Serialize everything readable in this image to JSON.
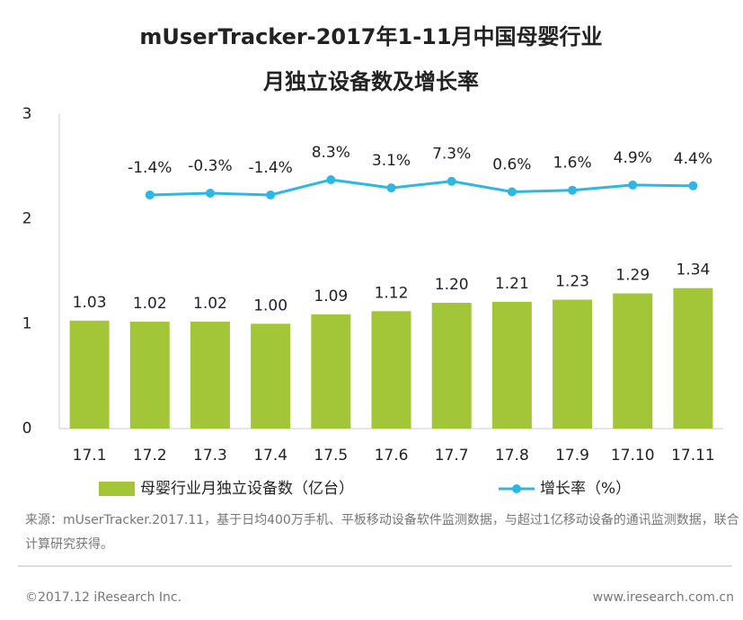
{
  "chart_data": {
    "type": "bar_line",
    "title": [
      "mUserTracker-2017年1-11月中国母婴行业",
      "月独立设备数及增长率"
    ],
    "categories": [
      "17.1",
      "17.2",
      "17.3",
      "17.4",
      "17.5",
      "17.6",
      "17.7",
      "17.8",
      "17.9",
      "17.10",
      "17.11"
    ],
    "series": [
      {
        "name": "母婴行业月独立设备数（亿台）",
        "type": "bar",
        "color": "#a3c639",
        "axis": "y",
        "values": [
          1.03,
          1.02,
          1.02,
          1.0,
          1.09,
          1.12,
          1.2,
          1.21,
          1.23,
          1.29,
          1.34
        ],
        "value_labels": [
          "1.03",
          "1.02",
          "1.02",
          "1.00",
          "1.09",
          "1.12",
          "1.20",
          "1.21",
          "1.23",
          "1.29",
          "1.34"
        ]
      },
      {
        "name": "增长率（%）",
        "type": "line",
        "color": "#2db7e3",
        "axis": "y2",
        "values": [
          null,
          -1.4,
          -0.3,
          -1.4,
          8.3,
          3.1,
          7.3,
          0.6,
          1.6,
          4.9,
          4.4
        ],
        "value_labels": [
          null,
          "-1.4%",
          "-0.3%",
          "-1.4%",
          "8.3%",
          "3.1%",
          "7.3%",
          "0.6%",
          "1.6%",
          "4.9%",
          "4.4%"
        ]
      }
    ],
    "ylim": [
      0,
      3
    ],
    "yticks": [
      0,
      1,
      2,
      3
    ],
    "y2lim": [
      -150,
      50
    ],
    "grid": false,
    "legend": "bottom"
  },
  "source": "来源：mUserTracker.2017.11，基于日均400万手机、平板移动设备软件监测数据，与超过1亿移动设备的通讯监测数据，联合计算研究获得。",
  "copyright": "©2017.12 iResearch Inc.",
  "website": "www.iresearch.com.cn"
}
